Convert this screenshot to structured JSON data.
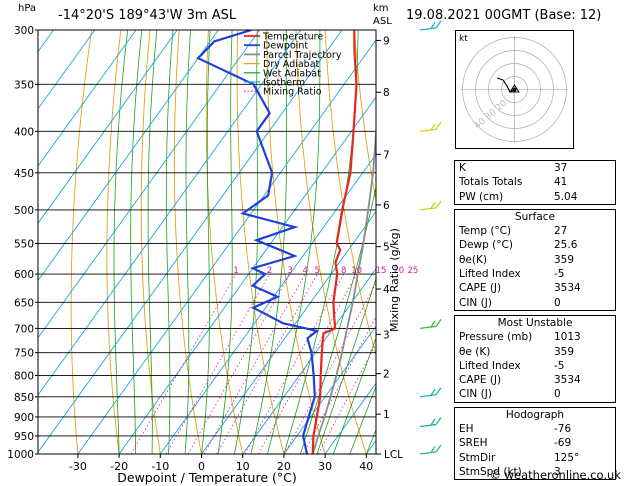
{
  "header": {
    "location": "-14°20'S  189°43'W  3m  ASL",
    "datetime": "19.08.2021  00GMT  (Base: 12)",
    "hpa_unit": "hPa",
    "km_unit": "km",
    "asl_unit": "ASL"
  },
  "chart_data": {
    "type": "skew-t",
    "xlabel": "Dewpoint / Temperature (°C)",
    "ylabel_right": "Mixing Ratio (g/kg)",
    "x_ticks": [
      -30,
      -20,
      -10,
      0,
      10,
      20,
      30,
      40
    ],
    "pressure_levels": [
      300,
      350,
      400,
      450,
      500,
      550,
      600,
      650,
      700,
      750,
      800,
      850,
      900,
      950,
      1000
    ],
    "km_ticks": [
      {
        "label": "9",
        "p": 309
      },
      {
        "label": "8",
        "p": 358
      },
      {
        "label": "7",
        "p": 427
      },
      {
        "label": "6",
        "p": 493
      },
      {
        "label": "5",
        "p": 555
      },
      {
        "label": "4",
        "p": 626
      },
      {
        "label": "3",
        "p": 712
      },
      {
        "label": "2",
        "p": 796
      },
      {
        "label": "1",
        "p": 893
      },
      {
        "label": "LCL",
        "p": 1000
      }
    ],
    "mixing_ratio_labels": [
      "1",
      "2",
      "3",
      "4",
      "5",
      "8",
      "10",
      "15",
      "20",
      "25"
    ],
    "legend": [
      "Temperature",
      "Dewpoint",
      "Parcel Trajectory",
      "Dry Adiabat",
      "Wet Adiabat",
      "Isotherm",
      "Mixing Ratio"
    ],
    "colors": {
      "temperature": "#e8261d",
      "dewpoint": "#1f3fd6",
      "parcel": "#8c8c8c",
      "dry_adiabat": "#e3a21a",
      "wet_adiabat": "#1aa31a",
      "isotherm": "#19a7d8",
      "mixing_ratio": "#d11ca8"
    },
    "temperature": [
      {
        "p": 1000,
        "t": 27
      },
      {
        "p": 950,
        "t": 24
      },
      {
        "p": 900,
        "t": 21.5
      },
      {
        "p": 850,
        "t": 18.8
      },
      {
        "p": 800,
        "t": 15.2
      },
      {
        "p": 750,
        "t": 11.5
      },
      {
        "p": 710,
        "t": 8.5
      },
      {
        "p": 700,
        "t": 10.5
      },
      {
        "p": 680,
        "t": 8.5
      },
      {
        "p": 650,
        "t": 5.5
      },
      {
        "p": 600,
        "t": 1.5
      },
      {
        "p": 580,
        "t": -1
      },
      {
        "p": 560,
        "t": -2
      },
      {
        "p": 550,
        "t": -4
      },
      {
        "p": 500,
        "t": -8.5
      },
      {
        "p": 450,
        "t": -13
      },
      {
        "p": 400,
        "t": -19.5
      },
      {
        "p": 350,
        "t": -27
      },
      {
        "p": 320,
        "t": -33
      },
      {
        "p": 300,
        "t": -37
      }
    ],
    "dewpoint": [
      {
        "p": 1000,
        "t": 25.6
      },
      {
        "p": 950,
        "t": 21.5
      },
      {
        "p": 900,
        "t": 19.5
      },
      {
        "p": 850,
        "t": 17.5
      },
      {
        "p": 800,
        "t": 13.5
      },
      {
        "p": 750,
        "t": 9
      },
      {
        "p": 720,
        "t": 5.5
      },
      {
        "p": 705,
        "t": 6.5
      },
      {
        "p": 690,
        "t": -3
      },
      {
        "p": 660,
        "t": -13
      },
      {
        "p": 640,
        "t": -9
      },
      {
        "p": 620,
        "t": -17
      },
      {
        "p": 600,
        "t": -16
      },
      {
        "p": 590,
        "t": -20
      },
      {
        "p": 570,
        "t": -12
      },
      {
        "p": 545,
        "t": -24
      },
      {
        "p": 525,
        "t": -17
      },
      {
        "p": 505,
        "t": -32
      },
      {
        "p": 480,
        "t": -29
      },
      {
        "p": 450,
        "t": -32
      },
      {
        "p": 400,
        "t": -43
      },
      {
        "p": 380,
        "t": -43
      },
      {
        "p": 350,
        "t": -52
      },
      {
        "p": 325,
        "t": -70
      },
      {
        "p": 310,
        "t": -69
      },
      {
        "p": 300,
        "t": -62
      }
    ],
    "parcel": [
      {
        "p": 1000,
        "t": 27
      },
      {
        "p": 950,
        "t": 25.2
      },
      {
        "p": 900,
        "t": 23.4
      },
      {
        "p": 850,
        "t": 21.3
      },
      {
        "p": 800,
        "t": 19
      },
      {
        "p": 750,
        "t": 16.4
      },
      {
        "p": 700,
        "t": 13.4
      },
      {
        "p": 650,
        "t": 10.2
      },
      {
        "p": 600,
        "t": 6.5
      },
      {
        "p": 550,
        "t": 2.5
      },
      {
        "p": 500,
        "t": -2.2
      },
      {
        "p": 450,
        "t": -7.5
      },
      {
        "p": 400,
        "t": -14
      },
      {
        "p": 350,
        "t": -21.5
      },
      {
        "p": 300,
        "t": -31
      }
    ],
    "wind_barbs": [
      {
        "p": 300,
        "color": "#1fb5c9"
      },
      {
        "p": 400,
        "color": "#d7d21a"
      },
      {
        "p": 500,
        "color": "#c6d31f"
      },
      {
        "p": 700,
        "color": "#2fbd2f"
      },
      {
        "p": 850,
        "color": "#1fb5a8"
      },
      {
        "p": 925,
        "color": "#1fb5a8"
      },
      {
        "p": 1000,
        "color": "#2fbd6f"
      }
    ]
  },
  "hodograph": {
    "unit": "kt",
    "ring_labels": [
      "40",
      "30",
      "20"
    ]
  },
  "indices": [
    {
      "label": "K",
      "value": "37"
    },
    {
      "label": "Totals Totals",
      "value": "41"
    },
    {
      "label": "PW (cm)",
      "value": "5.04"
    }
  ],
  "surface": {
    "title": "Surface",
    "rows": [
      {
        "label": "Temp (°C)",
        "value": "27"
      },
      {
        "label": "Dewp (°C)",
        "value": "25.6"
      },
      {
        "label": "θe(K)",
        "value": "359"
      },
      {
        "label": "Lifted Index",
        "value": "-5"
      },
      {
        "label": "CAPE (J)",
        "value": "3534"
      },
      {
        "label": "CIN (J)",
        "value": "0"
      }
    ]
  },
  "most_unstable": {
    "title": "Most Unstable",
    "rows": [
      {
        "label": "Pressure (mb)",
        "value": "1013"
      },
      {
        "label": "θe (K)",
        "value": "359"
      },
      {
        "label": "Lifted Index",
        "value": "-5"
      },
      {
        "label": "CAPE (J)",
        "value": "3534"
      },
      {
        "label": "CIN (J)",
        "value": "0"
      }
    ]
  },
  "hodograph_box": {
    "title": "Hodograph",
    "rows": [
      {
        "label": "EH",
        "value": "-76"
      },
      {
        "label": "SREH",
        "value": "-69"
      },
      {
        "label": "StmDir",
        "value": "125°"
      },
      {
        "label": "StmSpd (kt)",
        "value": "3"
      }
    ]
  },
  "copyright": "© weatheronline.co.uk"
}
